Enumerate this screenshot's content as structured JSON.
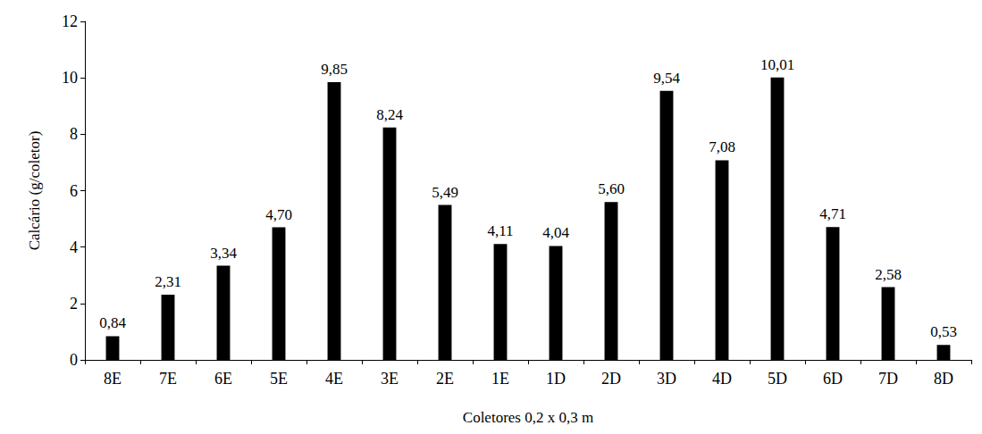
{
  "chart_data": {
    "type": "bar",
    "x_label": "Coletores 0,2 x 0,3 m",
    "y_label": "Calcário (g/coletor)",
    "categories": [
      "8E",
      "7E",
      "6E",
      "5E",
      "4E",
      "3E",
      "2E",
      "1E",
      "1D",
      "2D",
      "3D",
      "4D",
      "5D",
      "6D",
      "7D",
      "8D"
    ],
    "values": [
      0.84,
      2.31,
      3.34,
      4.7,
      9.85,
      8.24,
      5.49,
      4.11,
      4.04,
      5.6,
      9.54,
      7.08,
      10.01,
      4.71,
      2.58,
      0.53
    ],
    "value_labels": [
      "0,84",
      "2,31",
      "3,34",
      "4,70",
      "9,85",
      "8,24",
      "5,49",
      "4,11",
      "4,04",
      "5,60",
      "9,54",
      "7,08",
      "10,01",
      "4,71",
      "2,58",
      "0,53"
    ],
    "color": "#000000",
    "ylim": [
      0,
      12
    ],
    "yticks": [
      0,
      2,
      4,
      6,
      8,
      10,
      12
    ],
    "grid": false,
    "data_labels": true
  }
}
